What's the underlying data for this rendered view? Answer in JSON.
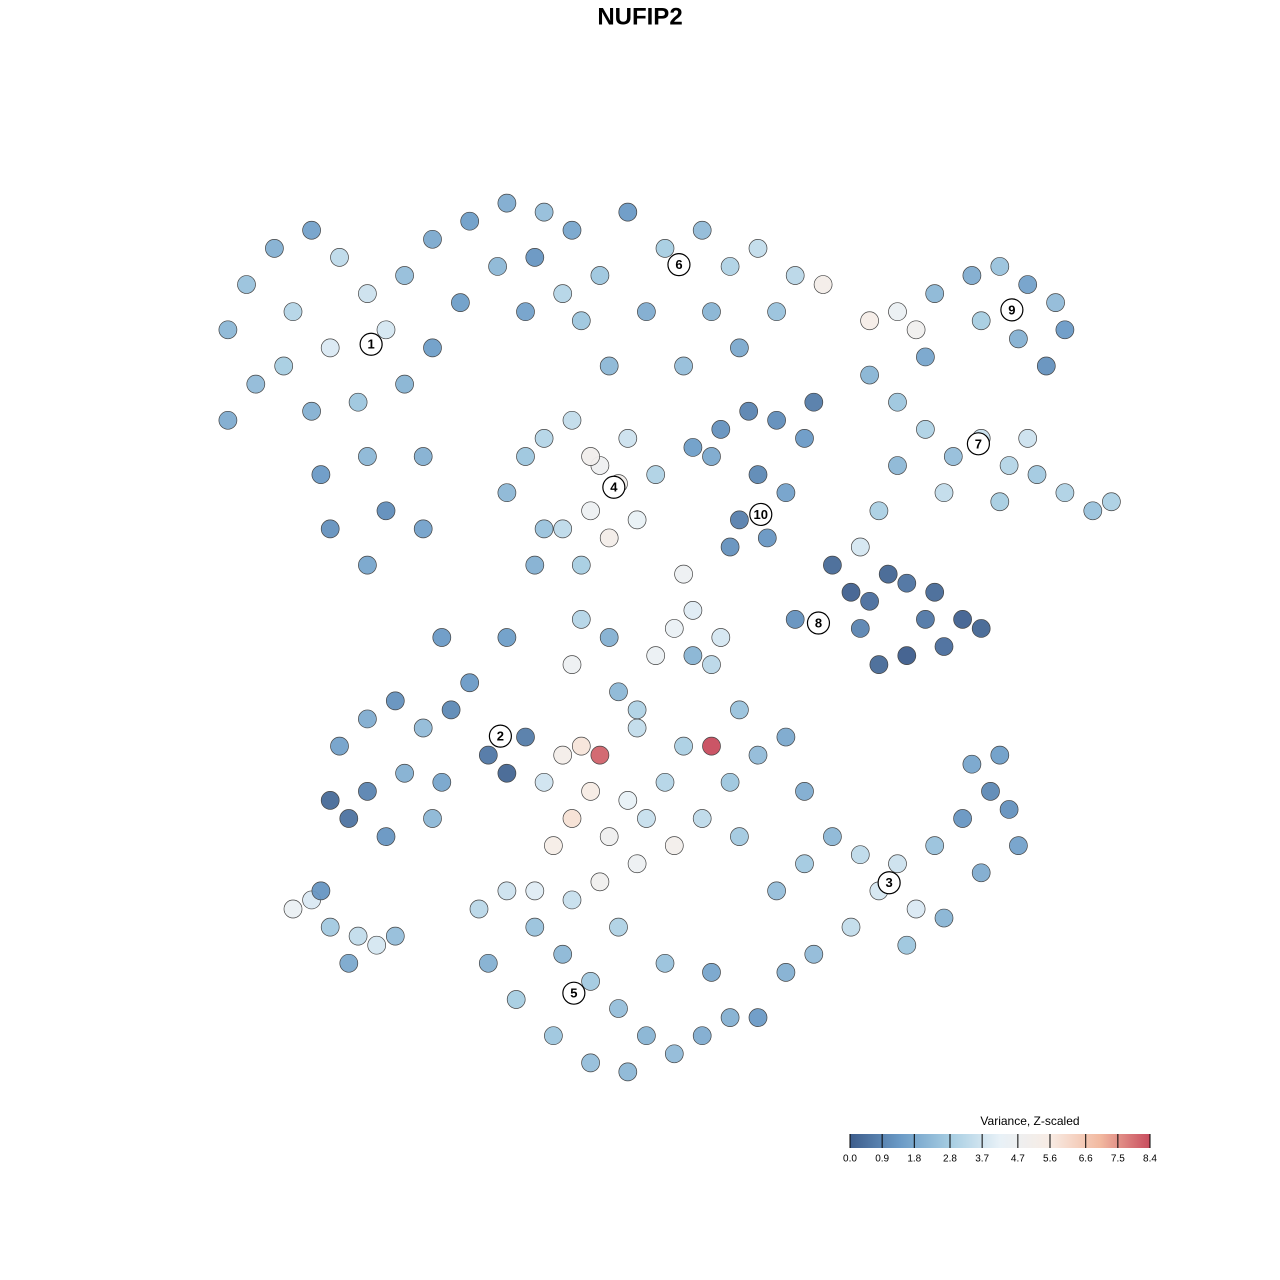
{
  "chart_data": {
    "type": "scatter",
    "title": "NUFIP2",
    "xlim": [
      0,
      100
    ],
    "ylim": [
      0,
      100
    ],
    "x": [
      3,
      5,
      8,
      12,
      15,
      18,
      20,
      22,
      25,
      10,
      14,
      6,
      12,
      17,
      22,
      25,
      13,
      18,
      14,
      18,
      20,
      24,
      3,
      9,
      29,
      33,
      37,
      32,
      36,
      40,
      43,
      46,
      50,
      54,
      57,
      60,
      64,
      67,
      62,
      55,
      48,
      41,
      35,
      58,
      52,
      44,
      39,
      28,
      72,
      75,
      77,
      79,
      83,
      86,
      89,
      92,
      93,
      84,
      88,
      91,
      78,
      72,
      75,
      78,
      81,
      84,
      87,
      90,
      93,
      96,
      98,
      89,
      80,
      75,
      86,
      73,
      71,
      33,
      35,
      37,
      40,
      43,
      45,
      42,
      39,
      44,
      47,
      49,
      46,
      36,
      41,
      37,
      42,
      53,
      56,
      59,
      62,
      65,
      60,
      63,
      58,
      61,
      57,
      55,
      66,
      68,
      70,
      72,
      74,
      76,
      79,
      82,
      84,
      80,
      76,
      73,
      78,
      71,
      64,
      51,
      53,
      56,
      49,
      55,
      40,
      44,
      14,
      16,
      18,
      15,
      18,
      21,
      24,
      27,
      29,
      31,
      33,
      22,
      26,
      20,
      25,
      35,
      37,
      39,
      41,
      43,
      42,
      40,
      38,
      44,
      46,
      48,
      50,
      52,
      55,
      57,
      60,
      63,
      51,
      54,
      47,
      43,
      36,
      58,
      47,
      45,
      58,
      65,
      62,
      65,
      68,
      71,
      73,
      75,
      77,
      79,
      82,
      85,
      87,
      88,
      84,
      80,
      76,
      70,
      66,
      63,
      86,
      83,
      30,
      33,
      36,
      39,
      42,
      45,
      48,
      51,
      54,
      57,
      38,
      42,
      46,
      34,
      31,
      50,
      55,
      60,
      45,
      40,
      10,
      12,
      14,
      17,
      19,
      16,
      21,
      13,
      26,
      33,
      24,
      47,
      41,
      52,
      53
    ],
    "y": [
      84,
      89,
      93,
      95,
      92,
      88,
      84,
      90,
      94,
      86,
      82,
      78,
      75,
      76,
      78,
      82,
      68,
      70,
      62,
      58,
      64,
      70,
      74,
      80,
      96,
      98,
      97,
      91,
      92,
      95,
      90,
      97,
      93,
      95,
      91,
      93,
      90,
      89,
      86,
      86,
      86,
      85,
      86,
      82,
      80,
      80,
      88,
      87,
      85,
      86,
      84,
      88,
      90,
      91,
      89,
      87,
      84,
      85,
      83,
      80,
      81,
      79,
      76,
      73,
      70,
      72,
      69,
      68,
      66,
      64,
      65,
      72,
      66,
      69,
      65,
      64,
      60,
      66,
      70,
      72,
      74,
      69,
      67,
      64,
      62,
      61,
      63,
      68,
      72,
      58,
      58,
      62,
      70,
      71,
      73,
      75,
      74,
      72,
      68,
      66,
      63,
      61,
      60,
      70,
      76,
      58,
      55,
      54,
      57,
      56,
      55,
      52,
      51,
      49,
      48,
      47,
      52,
      51,
      52,
      51,
      53,
      50,
      48,
      47,
      47,
      50,
      32,
      30,
      33,
      38,
      41,
      43,
      40,
      42,
      45,
      37,
      35,
      35,
      34,
      28,
      30,
      39,
      34,
      37,
      38,
      37,
      33,
      30,
      27,
      28,
      32,
      30,
      34,
      38,
      38,
      34,
      37,
      39,
      27,
      30,
      25,
      23,
      22,
      28,
      40,
      44,
      42,
      33,
      22,
      25,
      28,
      26,
      22,
      25,
      20,
      27,
      30,
      33,
      31,
      27,
      24,
      19,
      16,
      18,
      15,
      13,
      37,
      36,
      20,
      22,
      18,
      15,
      12,
      9,
      6,
      4,
      6,
      8,
      6,
      3,
      2,
      10,
      14,
      14,
      13,
      8,
      18,
      21,
      20,
      21,
      18,
      17,
      16,
      14,
      17,
      22,
      50,
      50,
      62,
      42,
      52,
      57,
      48
    ],
    "values": [
      2.2,
      2.5,
      2.0,
      1.6,
      3.3,
      3.6,
      3.8,
      2.4,
      1.8,
      3.1,
      3.9,
      2.3,
      2.0,
      2.6,
      2.1,
      1.5,
      1.4,
      2.2,
      1.2,
      1.7,
      1.1,
      2.0,
      1.9,
      2.8,
      1.5,
      1.9,
      2.4,
      2.2,
      1.3,
      1.7,
      2.6,
      1.4,
      2.8,
      2.3,
      3.0,
      3.4,
      3.2,
      5.2,
      2.5,
      2.1,
      1.9,
      2.6,
      1.6,
      1.8,
      2.4,
      2.2,
      3.1,
      1.5,
      5.3,
      4.5,
      4.9,
      2.2,
      1.9,
      2.5,
      1.6,
      2.3,
      1.4,
      2.8,
      2.0,
      1.2,
      1.7,
      2.1,
      2.6,
      3.0,
      2.4,
      3.5,
      3.1,
      2.7,
      3.0,
      2.5,
      2.9,
      3.6,
      3.4,
      2.2,
      2.8,
      2.9,
      3.8,
      2.2,
      2.6,
      3.1,
      3.4,
      4.7,
      5.1,
      4.6,
      3.3,
      5.2,
      4.3,
      3.0,
      3.6,
      2.0,
      2.8,
      2.5,
      5.0,
      1.5,
      1.2,
      0.9,
      1.1,
      1.4,
      1.0,
      1.6,
      0.8,
      1.3,
      1.2,
      1.8,
      0.7,
      0.3,
      0.1,
      0.4,
      0.2,
      0.5,
      0.3,
      0.1,
      0.2,
      0.4,
      0.0,
      0.3,
      0.6,
      0.9,
      1.2,
      4.4,
      4.0,
      3.8,
      4.5,
      3.2,
      4.6,
      2.0,
      0.3,
      0.5,
      0.9,
      1.6,
      1.9,
      1.2,
      2.3,
      1.0,
      1.4,
      0.6,
      0.2,
      2.0,
      1.7,
      1.3,
      2.2,
      0.7,
      3.7,
      5.2,
      5.8,
      8.1,
      5.5,
      5.9,
      5.4,
      4.8,
      4.2,
      3.5,
      3.1,
      2.9,
      8.4,
      2.6,
      2.3,
      1.8,
      5.1,
      3.3,
      4.6,
      4.9,
      4.0,
      2.7,
      3.4,
      2.2,
      2.5,
      1.9,
      2.4,
      2.7,
      2.2,
      3.3,
      3.8,
      3.6,
      3.9,
      2.5,
      1.3,
      1.0,
      1.2,
      1.6,
      1.9,
      2.1,
      2.6,
      3.4,
      2.3,
      2.0,
      1.5,
      1.7,
      3.2,
      3.6,
      2.5,
      2.2,
      2.7,
      2.4,
      2.1,
      2.3,
      1.9,
      2.0,
      2.6,
      2.4,
      2.2,
      2.8,
      2.0,
      2.5,
      1.7,
      1.4,
      3.0,
      3.5,
      4.5,
      3.9,
      2.7,
      3.4,
      3.8,
      1.8,
      2.4,
      1.3,
      1.4,
      1.5,
      1.6,
      3.0,
      3.1,
      4.6,
      2.1
    ],
    "clusters": [
      {
        "label": "1",
        "x": 18.4,
        "y": 82.4
      },
      {
        "label": "2",
        "x": 32.3,
        "y": 39.1
      },
      {
        "label": "3",
        "x": 74.1,
        "y": 22.9
      },
      {
        "label": "4",
        "x": 44.5,
        "y": 66.6
      },
      {
        "label": "5",
        "x": 40.2,
        "y": 10.7
      },
      {
        "label": "6",
        "x": 51.5,
        "y": 91.2
      },
      {
        "label": "7",
        "x": 83.7,
        "y": 71.4
      },
      {
        "label": "8",
        "x": 66.5,
        "y": 51.6
      },
      {
        "label": "9",
        "x": 87.3,
        "y": 86.2
      },
      {
        "label": "10",
        "x": 60.3,
        "y": 63.6
      }
    ],
    "colorbar": {
      "title": "Variance, Z-scaled",
      "clim": [
        0,
        8.4
      ],
      "colors": [
        "#3d5d8c",
        "#6a9ac6",
        "#a6cde2",
        "#e8f1f7",
        "#f8ece4",
        "#f2b9a0",
        "#c84c5e"
      ],
      "ticks": [
        {
          "value": 0,
          "label": "0.0"
        },
        0.9,
        1.8,
        2.8,
        3.7,
        4.7,
        5.6,
        6.6,
        7.5,
        8.4
      ]
    }
  }
}
